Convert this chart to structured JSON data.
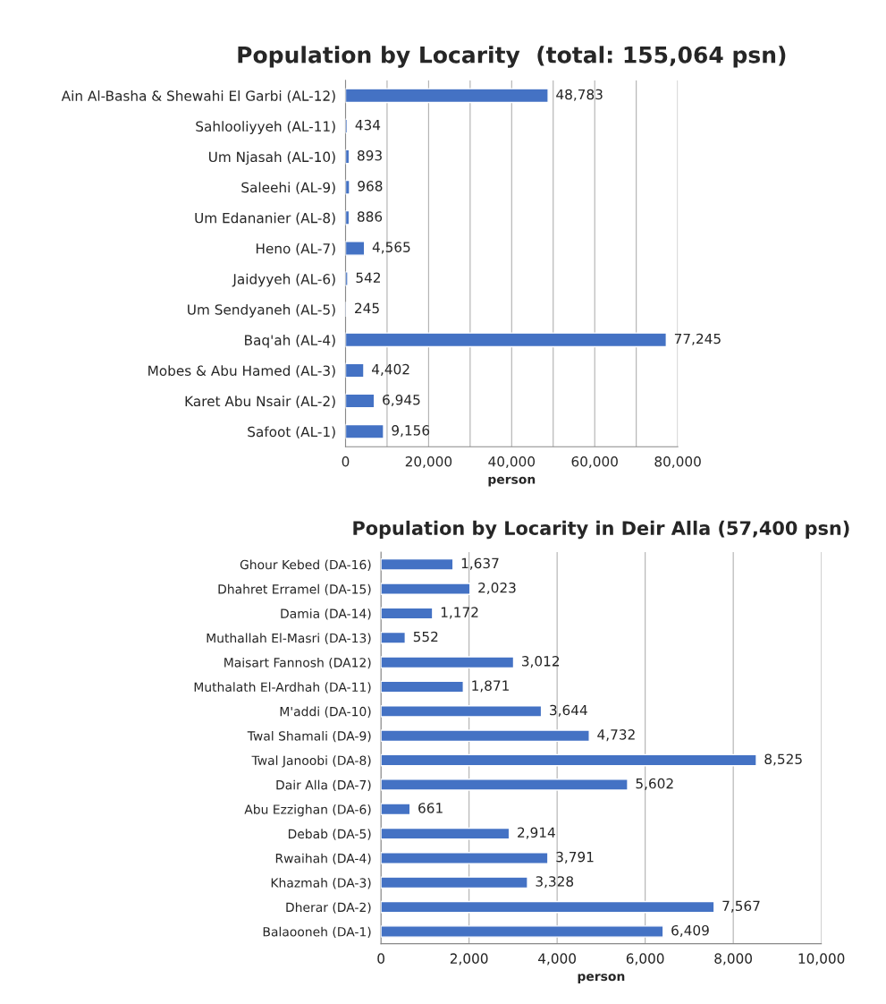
{
  "chart_data": [
    {
      "type": "bar",
      "orientation": "horizontal",
      "title": "Population by Locarity  (total: 155,064 psn)",
      "xlabel": "person",
      "categories": [
        "Ain Al-Basha & Shewahi El Garbi (AL-12)",
        "Sahlooliyyeh (AL-11)",
        "Um Njasah (AL-10)",
        "Saleehi (AL-9)",
        "Um Edananier (AL-8)",
        "Heno (AL-7)",
        "Jaidyyeh (AL-6)",
        "Um Sendyaneh (AL-5)",
        "Baq'ah (AL-4)",
        "Mobes & Abu Hamed (AL-3)",
        "Karet Abu Nsair (AL-2)",
        "Safoot (AL-1)"
      ],
      "values": [
        48783,
        434,
        893,
        968,
        886,
        4565,
        542,
        245,
        77245,
        4402,
        6945,
        9156
      ],
      "value_labels": [
        "48,783",
        "434",
        "893",
        "968",
        "886",
        "4,565",
        "542",
        "245",
        "77,245",
        "4,402",
        "6,945",
        "9,156"
      ],
      "color": "#4472c4",
      "grid": "x",
      "xlim": [
        0,
        80000
      ],
      "xticks": [
        0,
        {
          "value": 10000,
          "label": null
        },
        {
          "value": 20000,
          "label": "20,000"
        },
        {
          "value": 30000,
          "label": null
        },
        {
          "value": 40000,
          "label": "40,000"
        },
        {
          "value": 50000,
          "label": null
        },
        {
          "value": 60000,
          "label": "60,000"
        },
        {
          "value": 70000,
          "label": null
        },
        {
          "value": 80000,
          "label": "80,000"
        }
      ]
    },
    {
      "type": "bar",
      "orientation": "horizontal",
      "title": "Population by Locarity in Deir Alla (57,400 psn)",
      "xlabel": "person",
      "categories": [
        "Ghour Kebed (DA-16)",
        "Dhahret Erramel (DA-15)",
        "Damia (DA-14)",
        "Muthallah El-Masri (DA-13)",
        "Maisart Fannosh (DA12)",
        "Muthalath El-Ardhah (DA-11)",
        "M'addi (DA-10)",
        "Twal Shamali (DA-9)",
        "Twal Janoobi (DA-8)",
        "Dair Alla (DA-7)",
        "Abu Ezzighan (DA-6)",
        "Debab (DA-5)",
        "Rwaihah (DA-4)",
        "Khazmah (DA-3)",
        "Dherar (DA-2)",
        "Balaooneh (DA-1)"
      ],
      "values": [
        1637,
        2023,
        1172,
        552,
        3012,
        1871,
        3644,
        4732,
        8525,
        5602,
        661,
        2914,
        3791,
        3328,
        7567,
        6409
      ],
      "value_labels": [
        "1,637",
        "2,023",
        "1,172",
        "552",
        "3,012",
        "1,871",
        "3,644",
        "4,732",
        "8,525",
        "5,602",
        "661",
        "2,914",
        "3,791",
        "3,328",
        "7,567",
        "6,409"
      ],
      "color": "#4472c4",
      "grid": "x",
      "xlim": [
        0,
        10000
      ],
      "xticks": [
        0,
        {
          "value": 2000,
          "label": "2,000"
        },
        {
          "value": 4000,
          "label": "4,000"
        },
        {
          "value": 6000,
          "label": "6,000"
        },
        {
          "value": 8000,
          "label": "8,000"
        },
        {
          "value": 10000,
          "label": "10,000"
        }
      ]
    }
  ]
}
